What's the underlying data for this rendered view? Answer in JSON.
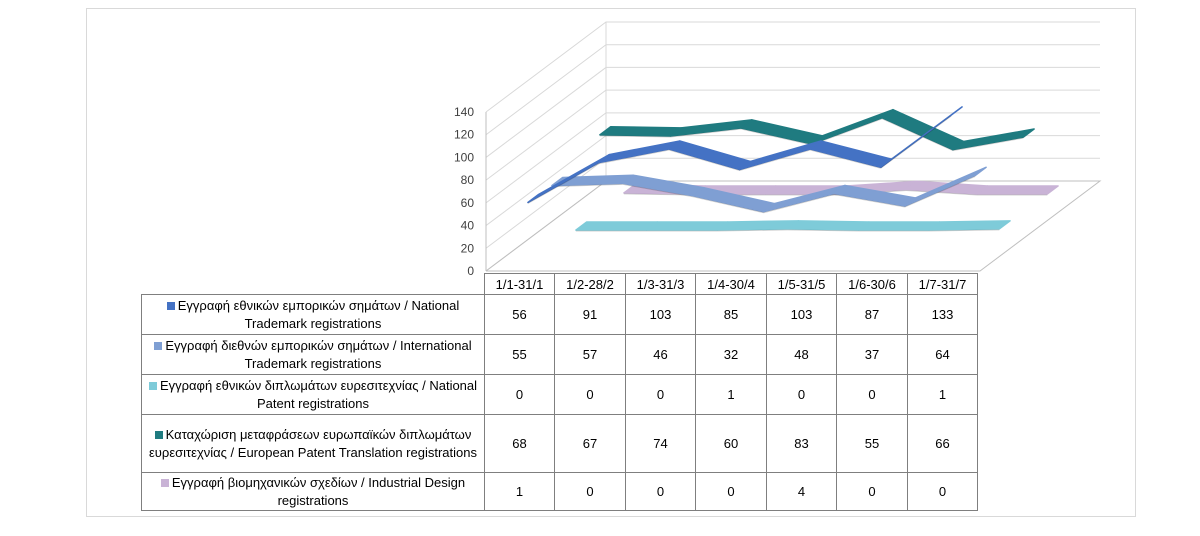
{
  "chart_data": {
    "type": "line",
    "style": "3d",
    "categories": [
      "1/1-31/1",
      "1/2-28/2",
      "1/3-31/3",
      "1/4-30/4",
      "1/5-31/5",
      "1/6-30/6",
      "1/7-31/7"
    ],
    "ylim": [
      0,
      140
    ],
    "yticks": [
      0,
      20,
      40,
      60,
      80,
      100,
      120,
      140
    ],
    "grid": true,
    "legend": "data-table",
    "series": [
      {
        "name": "Εγγραφή εθνικών εμπορικών σημάτων / National Trademark registrations",
        "color": "#4472c4",
        "values": [
          56,
          91,
          103,
          85,
          103,
          87,
          133
        ]
      },
      {
        "name": "Εγγραφή διεθνών εμπορικών σημάτων / International Trademark registrations",
        "color": "#7f9fd3",
        "values": [
          55,
          57,
          46,
          32,
          48,
          37,
          64
        ]
      },
      {
        "name": "Εγγραφή εθνικών διπλωμάτων ευρεσιτεχνίας / National Patent registrations",
        "color": "#7ecbd9",
        "values": [
          0,
          0,
          0,
          1,
          0,
          0,
          1
        ]
      },
      {
        "name": "Καταχώριση μεταφράσεων ευρωπαϊκών διπλωμάτων ευρεσιτεχνίας / European Patent Translation registrations",
        "color": "#1f7b80",
        "values": [
          68,
          67,
          74,
          60,
          83,
          55,
          66
        ]
      },
      {
        "name": "Εγγραφή βιομηχανικών σχεδίων / Industrial Design registrations",
        "color": "#c9b3d6",
        "values": [
          1,
          0,
          0,
          0,
          4,
          0,
          0
        ]
      }
    ]
  },
  "table": {
    "labels": [
      "Εγγραφή εθνικών εμπορικών σημάτων / National Trademark registrations",
      "Εγγραφή διεθνών εμπορικών σημάτων / International Trademark registrations",
      "Εγγραφή εθνικών διπλωμάτων ευρεσιτεχνίας / National Patent registrations",
      "Καταχώριση μεταφράσεων ευρωπαϊκών διπλωμάτων ευρεσιτεχνίας / European Patent Translation registrations",
      "Εγγραφή βιομηχανικών σχεδίων / Industrial Design registrations"
    ]
  }
}
